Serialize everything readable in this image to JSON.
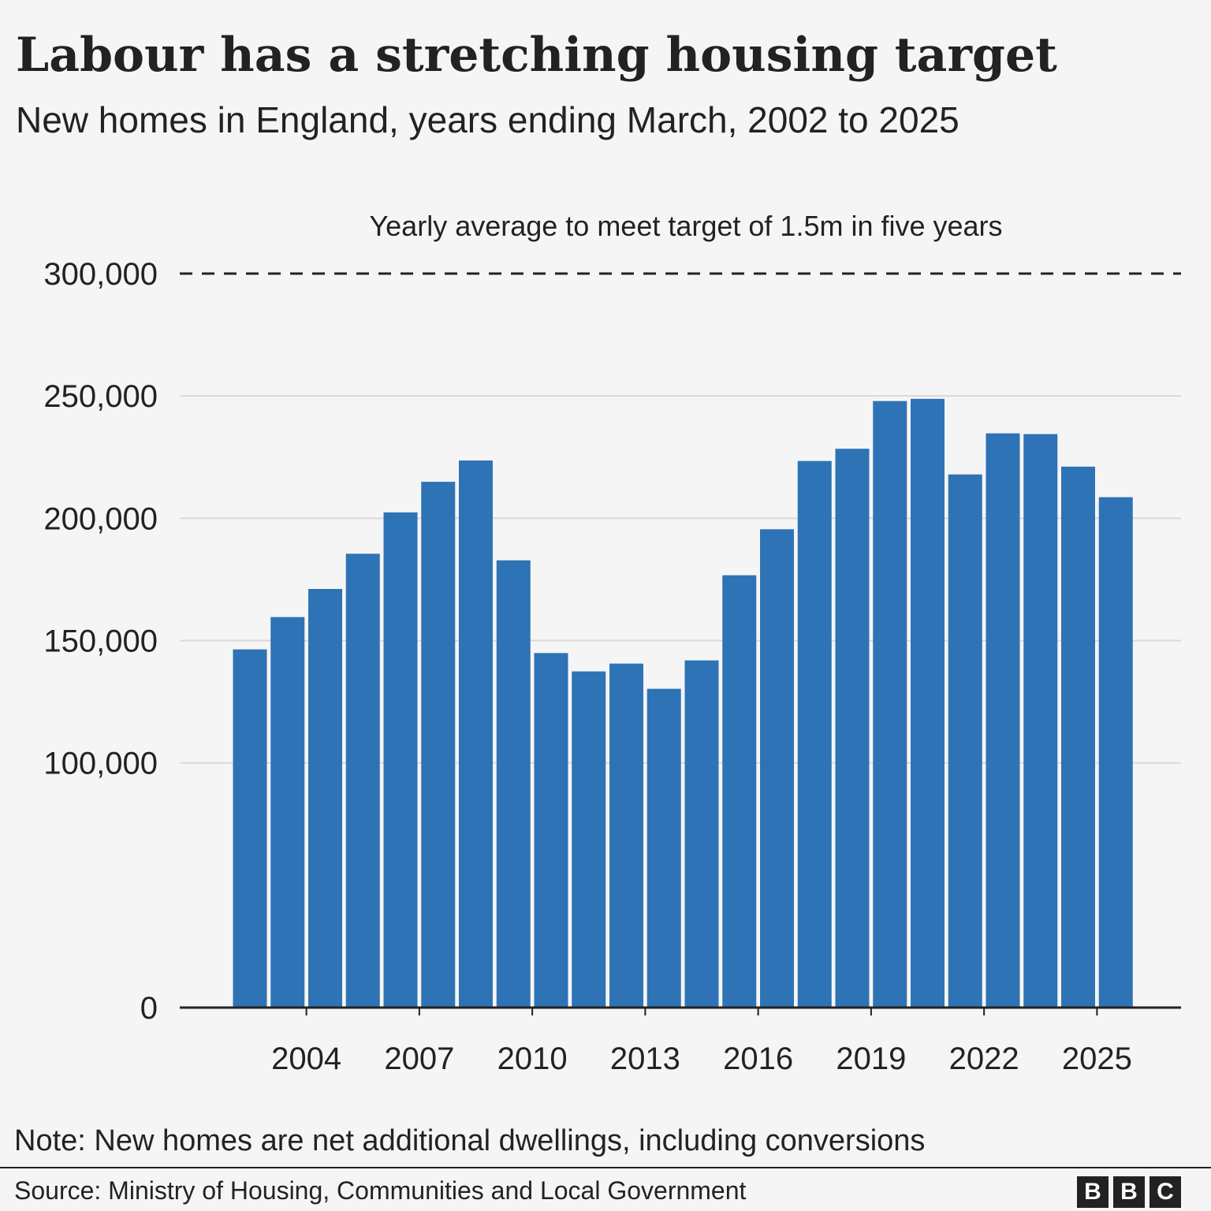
{
  "header": {
    "title": "Labour has a stretching housing target",
    "subtitle": "New homes in England, years ending March, 2002 to 2025"
  },
  "footer": {
    "note": "Note: New homes are net additional dwellings, including conversions",
    "source": "Source: Ministry of Housing, Communities and Local Government",
    "logo_letters": [
      "B",
      "B",
      "C"
    ]
  },
  "colors": {
    "bar": "#2e73b5",
    "text": "#222222",
    "grid": "#d9d9d9",
    "background": "#f5f5f5"
  },
  "chart_data": {
    "type": "bar",
    "title": "Labour has a stretching housing target",
    "subtitle": "New homes in England, years ending March, 2002 to 2025",
    "categories": [
      2002,
      2003,
      2004,
      2005,
      2006,
      2007,
      2008,
      2009,
      2010,
      2011,
      2012,
      2013,
      2014,
      2015,
      2016,
      2017,
      2018,
      2019,
      2020,
      2021,
      2022,
      2023,
      2024,
      2025
    ],
    "values": [
      146400,
      159600,
      171100,
      185500,
      202400,
      214900,
      223600,
      182800,
      144900,
      137400,
      140600,
      130300,
      141900,
      176700,
      195500,
      223400,
      228400,
      247900,
      248800,
      217900,
      234700,
      234400,
      221100,
      208600
    ],
    "x_ticks": [
      "2004",
      "2007",
      "2010",
      "2013",
      "2016",
      "2019",
      "2022",
      "2025"
    ],
    "y_ticks": [
      {
        "value": 0,
        "label": "0"
      },
      {
        "value": 100000,
        "label": "100,000"
      },
      {
        "value": 150000,
        "label": "150,000"
      },
      {
        "value": 200000,
        "label": "200,000"
      },
      {
        "value": 250000,
        "label": "250,000"
      },
      {
        "value": 300000,
        "label": "300,000"
      }
    ],
    "ylim": [
      0,
      300000
    ],
    "xlabel": "",
    "ylabel": "",
    "grid": true,
    "target_line": {
      "value": 300000,
      "label": "Yearly average to meet target of 1.5m in five years",
      "style": "dashed"
    }
  }
}
